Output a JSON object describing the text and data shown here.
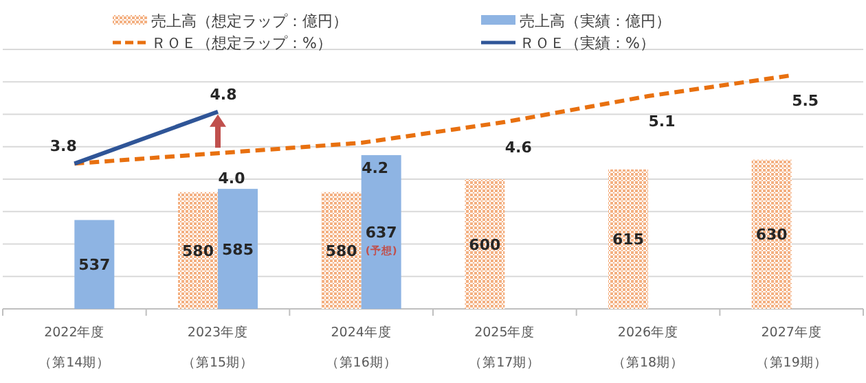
{
  "chart_data": {
    "type": "bar",
    "categories": [
      "2022年度（第14期）",
      "2023年度（第15期）",
      "2024年度（第16期）",
      "2025年度（第17期）",
      "2026年度（第18期）",
      "2027年度（第19期）"
    ],
    "series": [
      {
        "name": "売上高（想定ラップ：億円）",
        "color": "#f4b183",
        "values": [
          null,
          580,
          580,
          600,
          615,
          630
        ],
        "value_labels": [
          null,
          "580",
          "580",
          "600",
          "615",
          "630"
        ]
      },
      {
        "name": "売上高（実績：億円）",
        "color": "#8eb4e3",
        "values": [
          537,
          585,
          637,
          null,
          null,
          null
        ],
        "value_labels": [
          "537",
          "585",
          "637",
          null,
          null,
          null
        ]
      },
      {
        "name": "ＲＯＥ（想定ラップ：%）",
        "type": "line",
        "axis": "y2",
        "color": "#e8700f",
        "line_style": "dashed",
        "values": [
          3.8,
          4.0,
          4.2,
          4.6,
          5.1,
          5.5
        ],
        "value_labels": [
          null,
          "4.0",
          "4.2",
          "4.6",
          "5.1",
          "5.5"
        ]
      },
      {
        "name": "ＲＯＥ（実績：%）",
        "type": "line",
        "axis": "y2",
        "color": "#2f5597",
        "line_style": "solid",
        "values": [
          3.8,
          4.8,
          null,
          null,
          null,
          null
        ],
        "value_labels": [
          "3.8",
          "4.8",
          null,
          null,
          null,
          null
        ]
      }
    ],
    "ylim": [
      400,
      800
    ],
    "yticks": [
      {
        "value": 400,
        "label": null
      },
      {
        "value": 450,
        "label": null
      },
      {
        "value": 500,
        "label": null
      },
      {
        "value": 550,
        "label": null
      },
      {
        "value": 600,
        "label": null
      },
      {
        "value": 650,
        "label": null
      },
      {
        "value": 700,
        "label": null
      },
      {
        "value": 750,
        "label": null
      },
      {
        "value": 800,
        "label": null
      }
    ],
    "y2lim": [
      1,
      6
    ],
    "tick_labels": "x",
    "grid": "y",
    "legend": "top",
    "annotations": [
      "(予想)"
    ]
  }
}
